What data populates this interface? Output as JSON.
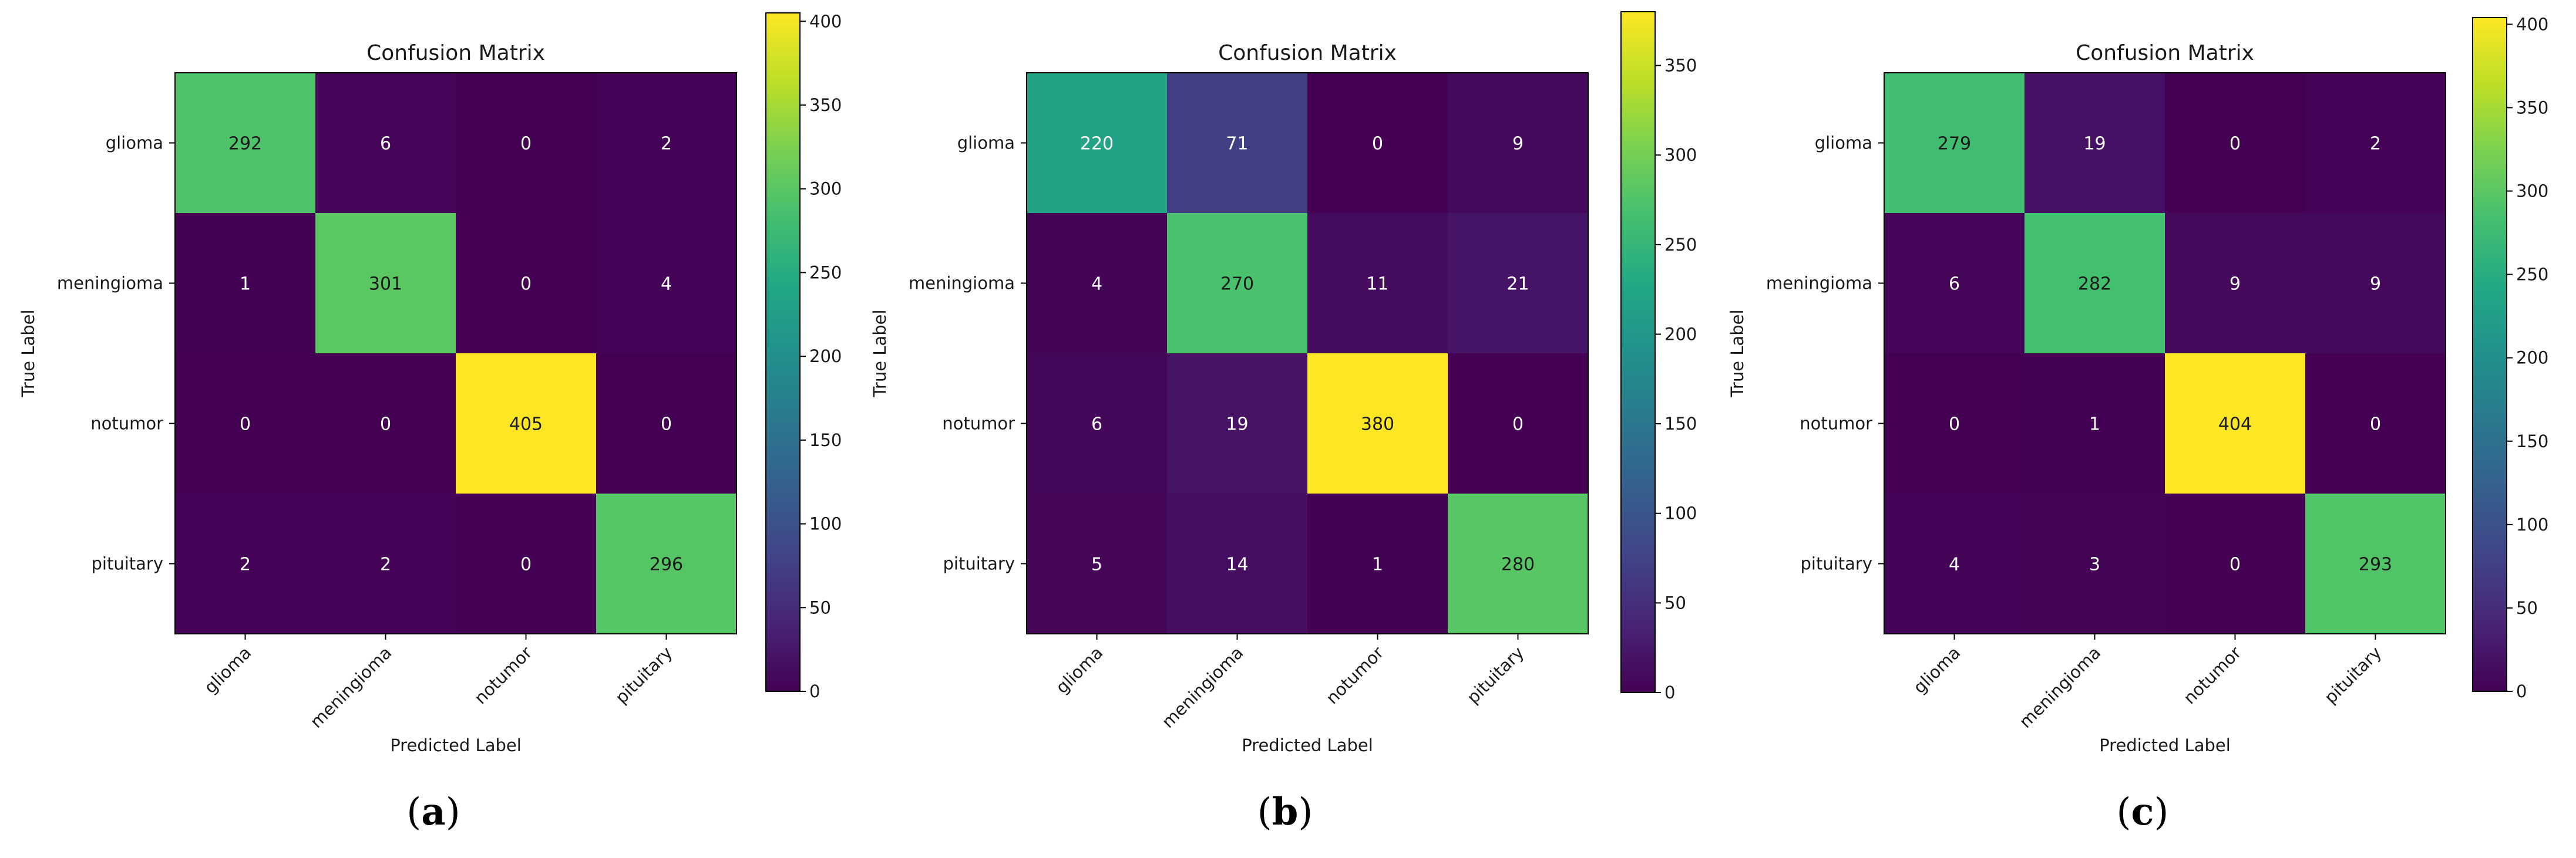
{
  "chart_data": [
    {
      "type": "heatmap",
      "panel": "a",
      "title": "Confusion Matrix",
      "xlabel": "Predicted Label",
      "ylabel": "True Label",
      "x_categories": [
        "glioma",
        "meningioma",
        "notumor",
        "pituitary"
      ],
      "y_categories": [
        "glioma",
        "meningioma",
        "notumor",
        "pituitary"
      ],
      "values": [
        [
          292,
          6,
          0,
          2
        ],
        [
          1,
          301,
          0,
          4
        ],
        [
          0,
          0,
          405,
          0
        ],
        [
          2,
          2,
          0,
          296
        ]
      ],
      "colorbar": {
        "range": [
          0,
          405
        ],
        "ticks": [
          0,
          50,
          100,
          150,
          200,
          250,
          300,
          350,
          400
        ]
      },
      "caption": {
        "open": "(",
        "letter": "a",
        "close": ")"
      }
    },
    {
      "type": "heatmap",
      "panel": "b",
      "title": "Confusion Matrix",
      "xlabel": "Predicted Label",
      "ylabel": "True Label",
      "x_categories": [
        "glioma",
        "meningioma",
        "notumor",
        "pituitary"
      ],
      "y_categories": [
        "glioma",
        "meningioma",
        "notumor",
        "pituitary"
      ],
      "values": [
        [
          220,
          71,
          0,
          9
        ],
        [
          4,
          270,
          11,
          21
        ],
        [
          6,
          19,
          380,
          0
        ],
        [
          5,
          14,
          1,
          280
        ]
      ],
      "colorbar": {
        "range": [
          0,
          380
        ],
        "ticks": [
          0,
          50,
          100,
          150,
          200,
          250,
          300,
          350
        ]
      },
      "caption": {
        "open": "(",
        "letter": "b",
        "close": ")"
      }
    },
    {
      "type": "heatmap",
      "panel": "c",
      "title": "Confusion Matrix",
      "xlabel": "Predicted Label",
      "ylabel": "True Label",
      "x_categories": [
        "glioma",
        "meningioma",
        "notumor",
        "pituitary"
      ],
      "y_categories": [
        "glioma",
        "meningioma",
        "notumor",
        "pituitary"
      ],
      "values": [
        [
          279,
          19,
          0,
          2
        ],
        [
          6,
          282,
          9,
          9
        ],
        [
          0,
          1,
          404,
          0
        ],
        [
          4,
          3,
          0,
          293
        ]
      ],
      "colorbar": {
        "range": [
          0,
          404
        ],
        "ticks": [
          0,
          50,
          100,
          150,
          200,
          250,
          300,
          350,
          400
        ]
      },
      "caption": {
        "open": "(",
        "letter": "c",
        "close": ")"
      }
    }
  ]
}
